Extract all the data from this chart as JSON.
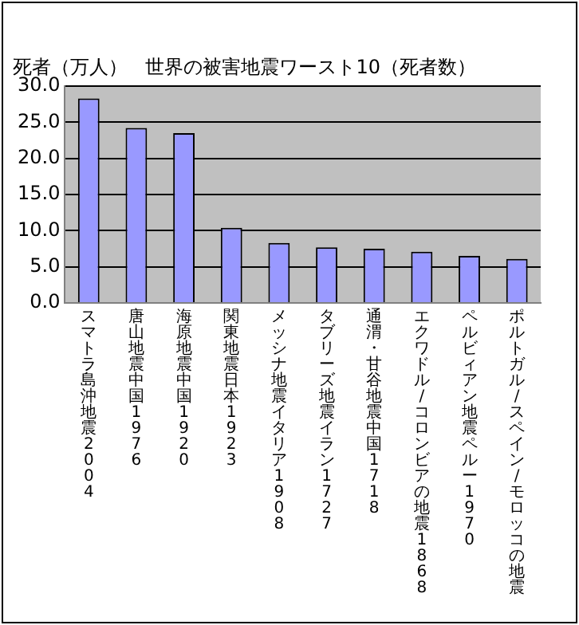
{
  "chart_data": {
    "type": "bar",
    "title": "世界の被害地震ワースト10（死者数）",
    "ylabel": "死者（万人）",
    "categories": [
      "スマトラ島沖地震2004",
      "唐山地震中国1976",
      "海原地震中国1920",
      "関東地震日本1923",
      "メッシナ地震イタリア1908",
      "タブリーズ地震イラン1727",
      "通渭・甘谷地震中国1718",
      "エクワドル/コロンビアの地震1868",
      "ペルビィアン地震ペルー1970",
      "ポルトガル/スペイン/モロッコの地震"
    ],
    "values": [
      28.3,
      24.2,
      23.5,
      10.4,
      8.3,
      7.7,
      7.5,
      7.1,
      6.5,
      6.1
    ],
    "color": "#9999ff",
    "ylim": [
      0,
      30
    ],
    "yticks": [
      {
        "value": 0,
        "label": "0.0"
      },
      {
        "value": 5,
        "label": "5.0"
      },
      {
        "value": 10,
        "label": "10.0"
      },
      {
        "value": 15,
        "label": "15.0"
      },
      {
        "value": 20,
        "label": "20.0"
      },
      {
        "value": 25,
        "label": "25.0"
      },
      {
        "value": 30,
        "label": "30.0"
      }
    ],
    "grid": "y",
    "legend": false
  }
}
